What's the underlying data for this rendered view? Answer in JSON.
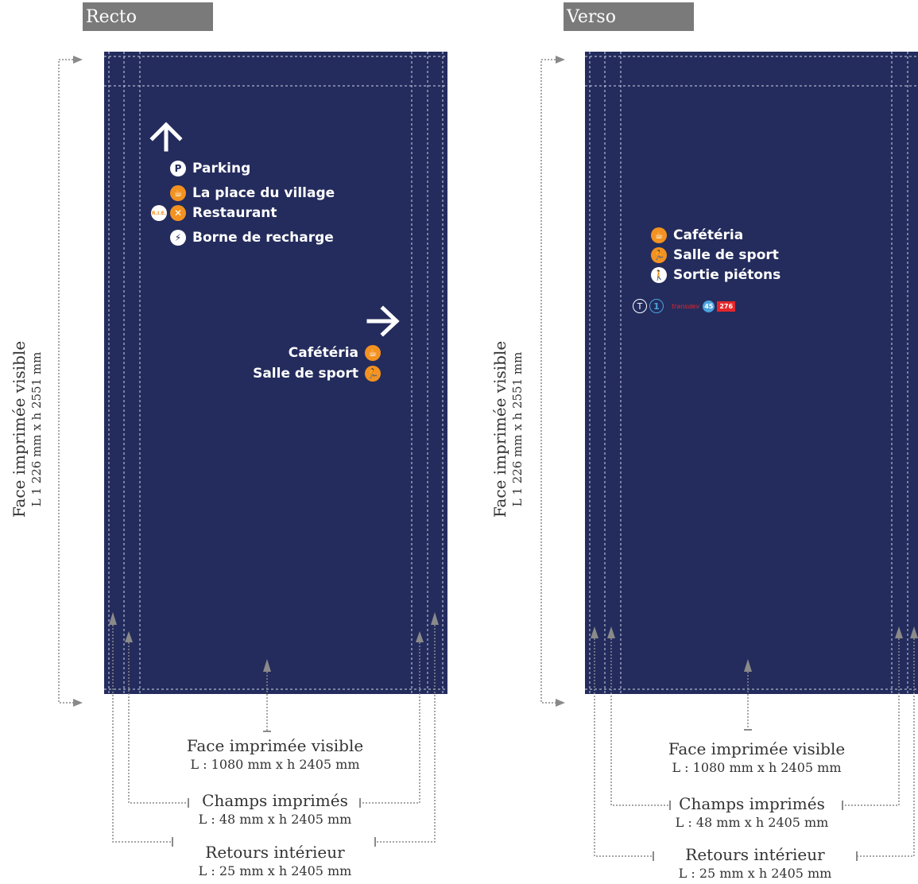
{
  "recto": {
    "tab": "Recto",
    "items_up": [
      {
        "label": "Parking",
        "icon": "parking-icon",
        "glyph": "P"
      },
      {
        "label": "La place du village",
        "icon": "coffee-icon",
        "glyph": "☕"
      },
      {
        "label": "Restaurant",
        "icon": "restaurant-icon",
        "glyph": "✕",
        "badge": "R.I.E."
      },
      {
        "label": "Borne de recharge",
        "icon": "car-charging-icon",
        "glyph": "⚡"
      }
    ],
    "items_right": [
      {
        "label": "Cafétéria",
        "icon": "coffee-icon",
        "glyph": "☕"
      },
      {
        "label": "Salle de sport",
        "icon": "sport-icon",
        "glyph": "🏃"
      }
    ],
    "side_label": {
      "line1": "Face imprimée visible",
      "line2": "L 1 226 mm x h 2551 mm"
    },
    "dims": {
      "visible": {
        "title": "Face imprimée visible",
        "size": "L : 1080 mm x h 2405 mm"
      },
      "champs": {
        "title": "Champs imprimés",
        "size": "L : 48 mm x h 2405 mm"
      },
      "retours": {
        "title": "Retours intérieur",
        "size": "L : 25 mm x h 2405 mm"
      }
    }
  },
  "verso": {
    "tab": "Verso",
    "items_left": [
      {
        "label": "Cafétéria",
        "icon": "coffee-icon",
        "glyph": "☕"
      },
      {
        "label": "Salle de sport",
        "icon": "sport-icon",
        "glyph": "🏃"
      },
      {
        "label": "Sortie piétons",
        "icon": "pedestrian-icon",
        "glyph": "🚶"
      }
    ],
    "transport": {
      "tram": "T",
      "line": "1",
      "brand": "transdev",
      "bus1": "45",
      "bus2": "276"
    },
    "side_label": {
      "line1": "Face imprimée visible",
      "line2": "L 1 226 mm x h 2551 mm"
    },
    "dims": {
      "visible": {
        "title": "Face imprimée visible",
        "size": "L : 1080 mm x h 2405 mm"
      },
      "champs": {
        "title": "Champs imprimés",
        "size": "L : 48 mm x h 2405 mm"
      },
      "retours": {
        "title": "Retours intérieur",
        "size": "L : 25 mm x h 2405 mm"
      }
    }
  },
  "colors": {
    "panel": "#242c5d",
    "orange": "#f39220",
    "tab": "#7a7a7a",
    "guide": "#9a9a9a"
  }
}
